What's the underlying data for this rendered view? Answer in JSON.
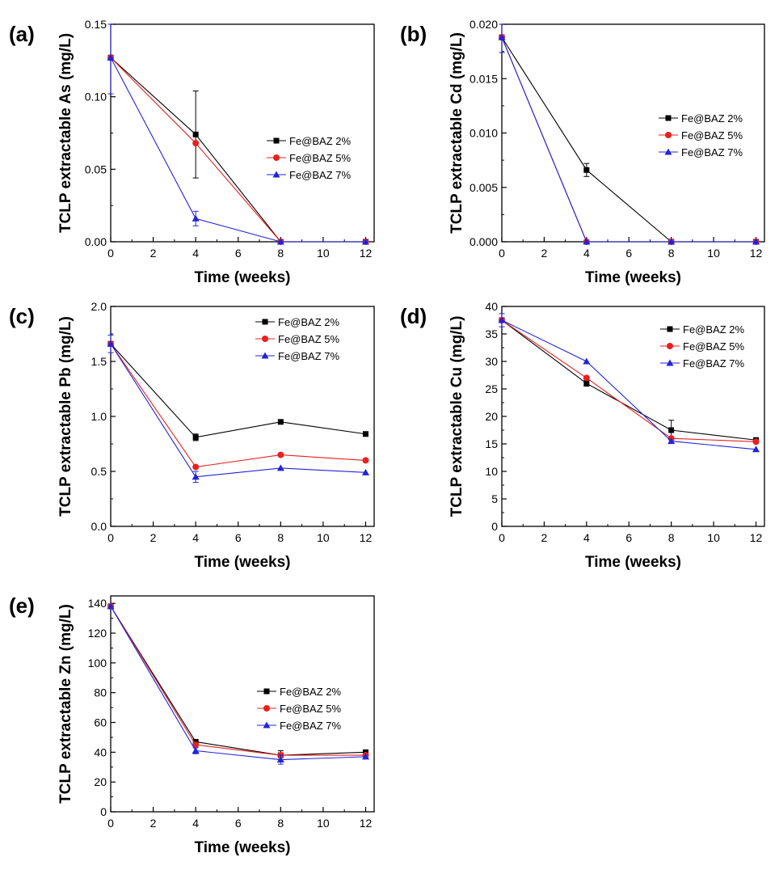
{
  "chart_data": [
    {
      "type": "line",
      "panel": "(a)",
      "xlabel": "Time (weeks)",
      "ylabel": "TCLP extractable As (mg/L)",
      "xlim": [
        0,
        12.4
      ],
      "ylim": [
        0,
        0.15
      ],
      "xticks": [
        0,
        2,
        4,
        6,
        8,
        10,
        12
      ],
      "yticks": [
        0,
        0.05,
        0.1,
        0.15
      ],
      "ytick_labels": [
        "0.00",
        "0.05",
        "0.10",
        "0.15"
      ],
      "x": [
        0,
        4,
        8,
        12
      ],
      "series": [
        {
          "name": "Fe@BAZ 2%",
          "color": "#000000",
          "marker": "square",
          "values": [
            0.127,
            0.074,
            0.0,
            0.0
          ],
          "errors": [
            0.0,
            0.03,
            0.0,
            0.0
          ]
        },
        {
          "name": "Fe@BAZ 5%",
          "color": "#e8211d",
          "marker": "circle",
          "values": [
            0.127,
            0.068,
            0.0,
            0.0
          ],
          "errors": [
            0.0,
            0.0,
            0.0,
            0.0
          ]
        },
        {
          "name": "Fe@BAZ 7%",
          "color": "#2323d8",
          "marker": "triangle",
          "values": [
            0.127,
            0.016,
            0.0,
            0.0
          ],
          "errors": [
            0.025,
            0.005,
            0.0,
            0.0
          ]
        }
      ],
      "legend": "middle-right"
    },
    {
      "type": "line",
      "panel": "(b)",
      "xlabel": "Time (weeks)",
      "ylabel": "TCLP extractable Cd (mg/L)",
      "xlim": [
        0,
        12.4
      ],
      "ylim": [
        0,
        0.02
      ],
      "xticks": [
        0,
        2,
        4,
        6,
        8,
        10,
        12
      ],
      "yticks": [
        0,
        0.005,
        0.01,
        0.015,
        0.02
      ],
      "ytick_labels": [
        "0.000",
        "0.005",
        "0.010",
        "0.015",
        "0.020"
      ],
      "x": [
        0,
        4,
        8,
        12
      ],
      "series": [
        {
          "name": "Fe@BAZ 2%",
          "color": "#000000",
          "marker": "square",
          "values": [
            0.0188,
            0.0066,
            0.0,
            0.0
          ],
          "errors": [
            0.0,
            0.0006,
            0.0,
            0.0
          ]
        },
        {
          "name": "Fe@BAZ 5%",
          "color": "#e8211d",
          "marker": "circle",
          "values": [
            0.0188,
            0.0,
            0.0,
            0.0
          ],
          "errors": [
            0.0,
            0.0,
            0.0,
            0.0
          ]
        },
        {
          "name": "Fe@BAZ 7%",
          "color": "#2323d8",
          "marker": "triangle",
          "values": [
            0.0188,
            0.0,
            0.0,
            0.0
          ],
          "errors": [
            0.0014,
            0.0,
            0.0,
            0.0
          ]
        }
      ],
      "legend": "middle-right"
    },
    {
      "type": "line",
      "panel": "(c)",
      "xlabel": "Time (weeks)",
      "ylabel": "TCLP extractable Pb (mg/L)",
      "xlim": [
        0,
        12.4
      ],
      "ylim": [
        0,
        2.0
      ],
      "xticks": [
        0,
        2,
        4,
        6,
        8,
        10,
        12
      ],
      "yticks": [
        0,
        0.5,
        1.0,
        1.5,
        2.0
      ],
      "ytick_labels": [
        "0.0",
        "0.5",
        "1.0",
        "1.5",
        "2.0"
      ],
      "x": [
        0,
        4,
        8,
        12
      ],
      "series": [
        {
          "name": "Fe@BAZ 2%",
          "color": "#000000",
          "marker": "square",
          "values": [
            1.66,
            0.81,
            0.95,
            0.84
          ],
          "errors": [
            0.0,
            0.03,
            0.0,
            0.0
          ]
        },
        {
          "name": "Fe@BAZ 5%",
          "color": "#e8211d",
          "marker": "circle",
          "values": [
            1.66,
            0.54,
            0.65,
            0.6
          ],
          "errors": [
            0.0,
            0.0,
            0.0,
            0.0
          ]
        },
        {
          "name": "Fe@BAZ 7%",
          "color": "#2323d8",
          "marker": "triangle",
          "values": [
            1.66,
            0.45,
            0.53,
            0.49
          ],
          "errors": [
            0.08,
            0.05,
            0.0,
            0.0
          ]
        }
      ],
      "legend": "top-right"
    },
    {
      "type": "line",
      "panel": "(d)",
      "xlabel": "Time (weeks)",
      "ylabel": "TCLP extractable Cu (mg/L)",
      "xlim": [
        0,
        12.4
      ],
      "ylim": [
        0,
        40
      ],
      "xticks": [
        0,
        2,
        4,
        6,
        8,
        10,
        12
      ],
      "yticks": [
        0,
        5,
        10,
        15,
        20,
        25,
        30,
        35,
        40
      ],
      "ytick_labels": [
        "0",
        "5",
        "10",
        "15",
        "20",
        "25",
        "30",
        "35",
        "40"
      ],
      "x": [
        0,
        4,
        8,
        12
      ],
      "series": [
        {
          "name": "Fe@BAZ 2%",
          "color": "#000000",
          "marker": "square",
          "values": [
            37.5,
            26.0,
            17.5,
            15.7
          ],
          "errors": [
            0.0,
            0.5,
            1.8,
            0.0
          ]
        },
        {
          "name": "Fe@BAZ 5%",
          "color": "#e8211d",
          "marker": "circle",
          "values": [
            37.5,
            27.0,
            16.0,
            15.4
          ],
          "errors": [
            0.0,
            0.0,
            0.0,
            0.0
          ]
        },
        {
          "name": "Fe@BAZ 7%",
          "color": "#2323d8",
          "marker": "triangle",
          "values": [
            37.5,
            30.0,
            15.5,
            14.0
          ],
          "errors": [
            1.2,
            0.0,
            0.0,
            0.0
          ]
        }
      ],
      "legend": "top-right"
    },
    {
      "type": "line",
      "panel": "(e)",
      "xlabel": "Time (weeks)",
      "ylabel": "TCLP extractable Zn (mg/L)",
      "xlim": [
        0,
        12.4
      ],
      "ylim": [
        0,
        145
      ],
      "xticks": [
        0,
        2,
        4,
        6,
        8,
        10,
        12
      ],
      "yticks": [
        0,
        20,
        40,
        60,
        80,
        100,
        120,
        140
      ],
      "ytick_labels": [
        "0",
        "20",
        "40",
        "60",
        "80",
        "100",
        "120",
        "140"
      ],
      "x": [
        0,
        4,
        8,
        12
      ],
      "series": [
        {
          "name": "Fe@BAZ 2%",
          "color": "#000000",
          "marker": "square",
          "values": [
            138,
            47,
            38,
            40
          ],
          "errors": [
            0.0,
            0.0,
            3.0,
            0.0
          ]
        },
        {
          "name": "Fe@BAZ 5%",
          "color": "#e8211d",
          "marker": "circle",
          "values": [
            138,
            45,
            38,
            38
          ],
          "errors": [
            0.0,
            0.0,
            0.0,
            0.0
          ]
        },
        {
          "name": "Fe@BAZ 7%",
          "color": "#2323d8",
          "marker": "triangle",
          "values": [
            138,
            41,
            35,
            37
          ],
          "errors": [
            0.0,
            2.0,
            3.0,
            0.0
          ]
        }
      ],
      "legend": "middle-right"
    }
  ]
}
